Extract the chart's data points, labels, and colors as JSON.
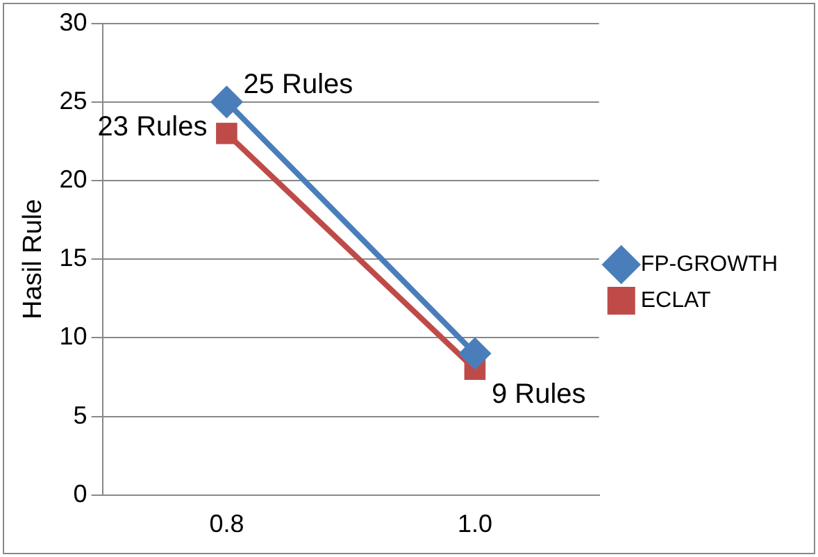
{
  "chart_data": {
    "type": "line",
    "categories": [
      "0.8",
      "1.0"
    ],
    "series": [
      {
        "name": "FP-GROWTH",
        "color": "#4a7ebb",
        "marker": "diamond",
        "values": [
          25,
          9
        ],
        "value_labels": [
          "25 Rules",
          "9 Rules"
        ]
      },
      {
        "name": "ECLAT",
        "color": "#be4b48",
        "marker": "square",
        "values": [
          23,
          8
        ],
        "value_labels": [
          "23 Rules",
          null
        ]
      }
    ],
    "ylabel": "Hasil Rule",
    "ylim": [
      0,
      30
    ],
    "yticks": [
      0,
      5,
      10,
      15,
      20,
      25,
      30
    ],
    "grid": "y",
    "legend": "right"
  }
}
